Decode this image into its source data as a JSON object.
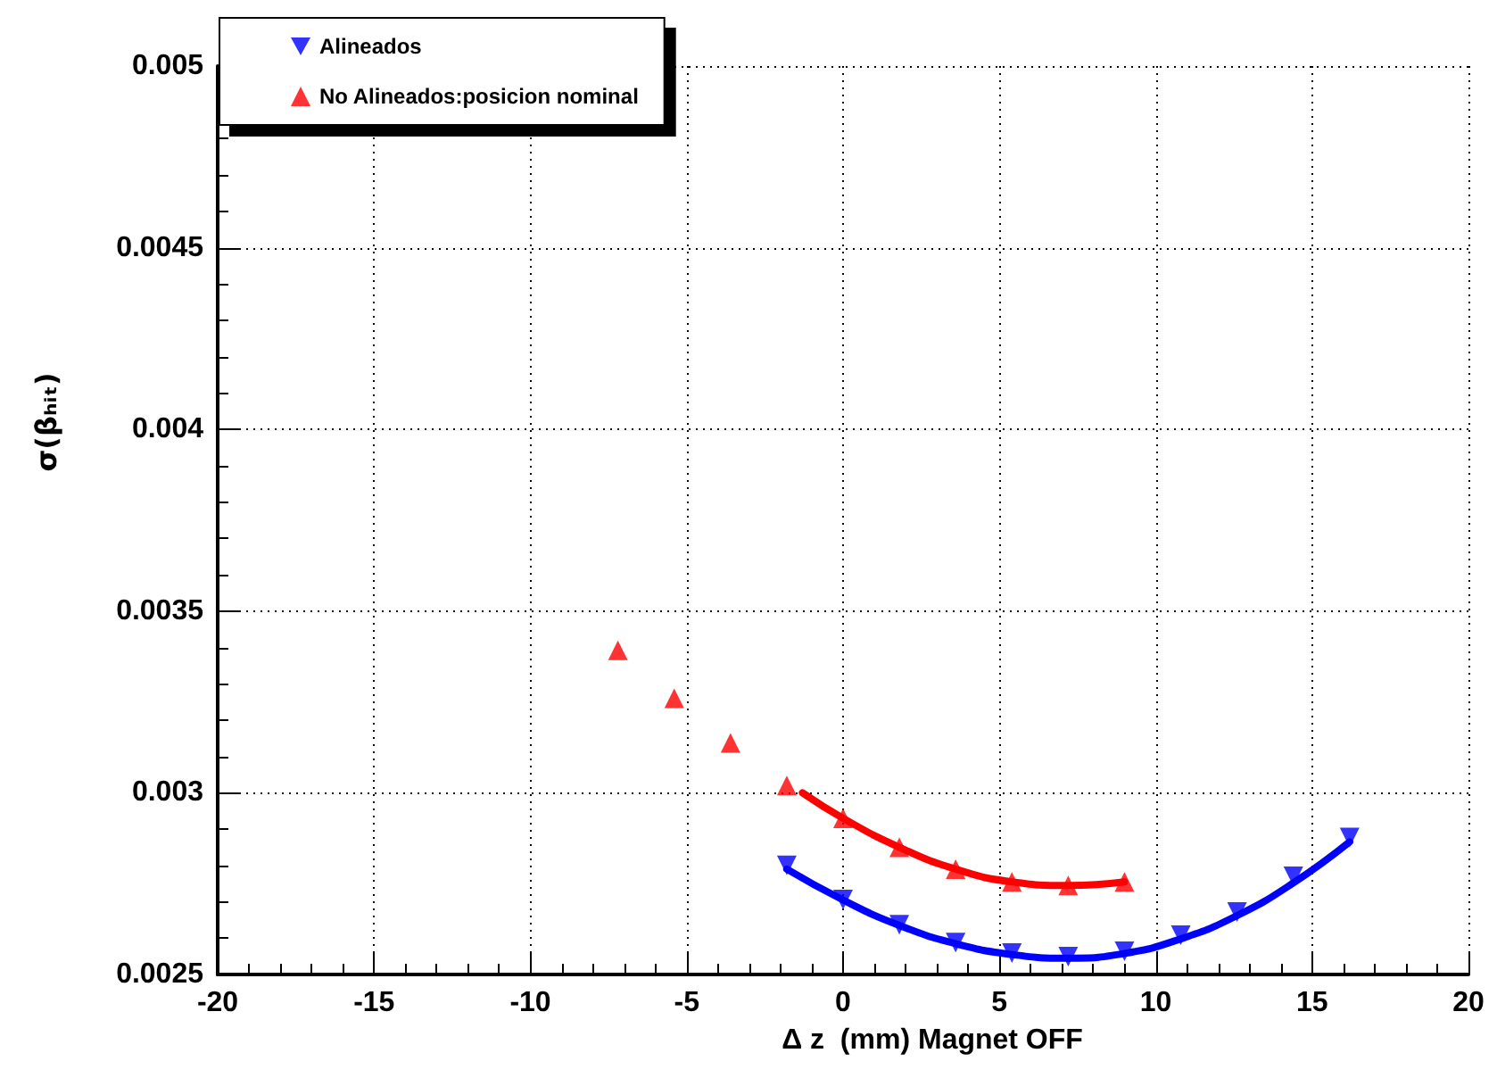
{
  "chart_data": {
    "type": "scatter",
    "xlabel": "Δ z  (mm) Magnet OFF",
    "ylabel": "σ(βₕᵢₜ)",
    "xlim": [
      -20,
      20
    ],
    "xticks": [
      -20,
      -15,
      -10,
      -5,
      0,
      5,
      10,
      15,
      20
    ],
    "ylim": [
      0.0025,
      0.005
    ],
    "yticks": [
      0.0025,
      0.003,
      0.0035,
      0.004,
      0.0045,
      0.005
    ],
    "grid": true,
    "legend": "top left",
    "series": [
      {
        "name": "Alineados",
        "color": "#0000ff",
        "marker": "triangle-down",
        "x": [
          -1.8,
          0,
          1.8,
          3.6,
          5.4,
          7.2,
          9.0,
          10.8,
          12.6,
          14.4,
          16.2
        ],
        "values": [
          0.0028,
          0.002706,
          0.002637,
          0.002588,
          0.002559,
          0.002549,
          0.002564,
          0.002608,
          0.002672,
          0.00277,
          0.002877
        ]
      },
      {
        "name": "No Alineados:posicion nominal",
        "color": "#ff0000",
        "marker": "triangle",
        "x": [
          -7.2,
          -5.4,
          -3.6,
          -1.8,
          0,
          1.8,
          3.6,
          5.4,
          7.2,
          9.0
        ],
        "values": [
          0.003392,
          0.00326,
          0.003137,
          0.00302,
          0.00293,
          0.00285,
          0.00279,
          0.002755,
          0.002745,
          0.002755
        ]
      },
      {
        "type": "line",
        "color": "#0000ff",
        "marker": "none",
        "x": [
          -1.8,
          0,
          1.8,
          3.6,
          5.4,
          7.2,
          9.0,
          10.8,
          12.6,
          14.4,
          16.2
        ],
        "values": [
          0.00279,
          0.002705,
          0.002635,
          0.002585,
          0.002555,
          0.002545,
          0.002558,
          0.002598,
          0.002662,
          0.002752,
          0.002865
        ]
      },
      {
        "type": "line",
        "color": "#ff0000",
        "marker": "none",
        "x": [
          -1.3,
          0,
          1.8,
          3.6,
          5.4,
          7.2,
          9.0
        ],
        "values": [
          0.003,
          0.00293,
          0.00285,
          0.00279,
          0.002755,
          0.002745,
          0.002755
        ]
      }
    ]
  }
}
